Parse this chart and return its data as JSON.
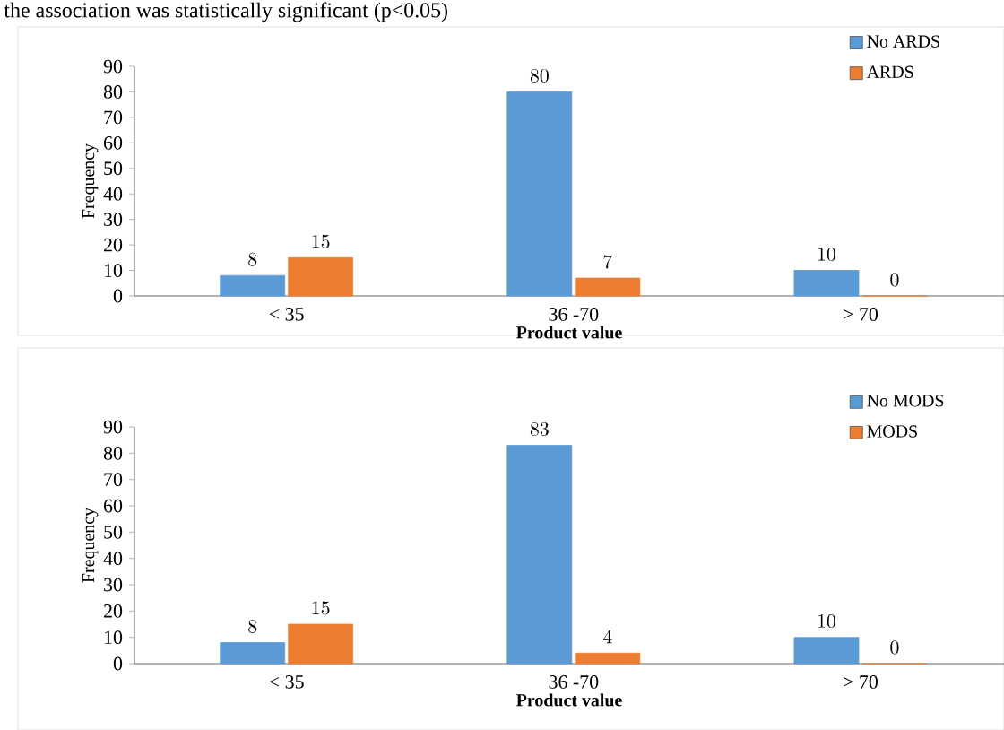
{
  "chart_data": [
    {
      "type": "bar",
      "annotations": [
        "the association was statistically significant (p<0.05)"
      ],
      "xlabel": "Product  value",
      "ylabel": "Frequency",
      "categories": [
        "< 35",
        "36 -70",
        "> 70"
      ],
      "series": [
        {
          "name": "No ARDS",
          "color": "#5b9bd5",
          "values": [
            8,
            80,
            10
          ]
        },
        {
          "name": "ARDS",
          "color": "#ed7d31",
          "values": [
            15,
            7,
            0
          ]
        }
      ],
      "ylim": [
        0,
        90
      ],
      "yticks": [
        0,
        10,
        20,
        30,
        40,
        50,
        60,
        70,
        80,
        90
      ],
      "data_labels": true,
      "legend": "top right"
    },
    {
      "type": "bar",
      "xlabel": "Product  value",
      "ylabel": "Frequency",
      "categories": [
        "< 35",
        "36 -70",
        "> 70"
      ],
      "series": [
        {
          "name": "No MODS",
          "color": "#5b9bd5",
          "values": [
            8,
            83,
            10
          ]
        },
        {
          "name": "MODS",
          "color": "#ed7d31",
          "values": [
            15,
            4,
            0
          ]
        }
      ],
      "ylim": [
        0,
        90
      ],
      "yticks": [
        0,
        10,
        20,
        30,
        40,
        50,
        60,
        70,
        80,
        90
      ],
      "data_labels": true,
      "legend": "top right"
    }
  ]
}
